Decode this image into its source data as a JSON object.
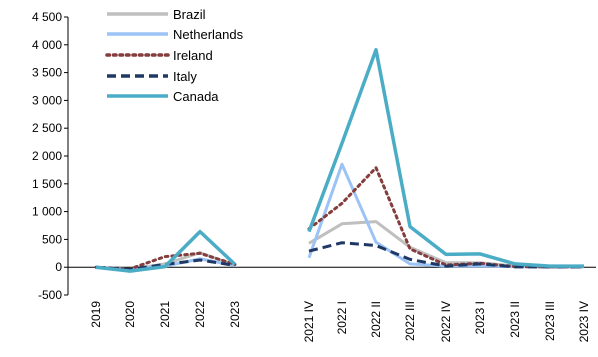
{
  "chart_data": {
    "type": "line",
    "title": "",
    "xlabel": "",
    "ylabel": "",
    "ylim": [
      -500,
      4500
    ],
    "yticks": [
      -500,
      0,
      500,
      1000,
      1500,
      2000,
      2500,
      3000,
      3500,
      4000,
      4500
    ],
    "ytick_labels": [
      "-500",
      "0",
      "500",
      "1 000",
      "1 500",
      "2 000",
      "2 500",
      "3 000",
      "3 500",
      "4 000",
      "4 500"
    ],
    "grid": false,
    "legend_position": "top-left",
    "panels": [
      {
        "categories": [
          "2019",
          "2020",
          "2021",
          "2022",
          "2023"
        ],
        "series": [
          {
            "name": "Brazil",
            "color": "#bfbfbf",
            "style": "solid",
            "values": [
              0,
              -40,
              60,
              260,
              40
            ]
          },
          {
            "name": "Netherlands",
            "color": "#9cc3f5",
            "style": "solid",
            "values": [
              0,
              -40,
              20,
              150,
              30
            ]
          },
          {
            "name": "Ireland",
            "color": "#843c3c",
            "style": "dotted",
            "values": [
              0,
              -30,
              190,
              250,
              50
            ]
          },
          {
            "name": "Italy",
            "color": "#1f3864",
            "style": "dashed",
            "values": [
              0,
              -40,
              50,
              130,
              30
            ]
          },
          {
            "name": "Canada",
            "color": "#4bacc6",
            "style": "solid",
            "values": [
              0,
              -70,
              10,
              640,
              50
            ]
          }
        ]
      },
      {
        "categories": [
          "2021 IV",
          "2022 I",
          "2022 II",
          "2022 III",
          "2022 IV",
          "2023 I",
          "2023 II",
          "2023 III",
          "2023 IV"
        ],
        "series": [
          {
            "name": "Brazil",
            "color": "#bfbfbf",
            "style": "solid",
            "values": [
              430,
              780,
              820,
              360,
              80,
              80,
              20,
              10,
              10
            ]
          },
          {
            "name": "Netherlands",
            "color": "#9cc3f5",
            "style": "solid",
            "values": [
              170,
              1850,
              450,
              60,
              20,
              20,
              10,
              5,
              5
            ]
          },
          {
            "name": "Ireland",
            "color": "#843c3c",
            "style": "dotted",
            "values": [
              690,
              1150,
              1790,
              330,
              40,
              70,
              10,
              5,
              5
            ]
          },
          {
            "name": "Italy",
            "color": "#1f3864",
            "style": "dashed",
            "values": [
              290,
              440,
              390,
              140,
              20,
              60,
              5,
              5,
              5
            ]
          },
          {
            "name": "Canada",
            "color": "#4bacc6",
            "style": "solid",
            "values": [
              640,
              2230,
              3910,
              730,
              230,
              240,
              60,
              20,
              20
            ]
          }
        ]
      }
    ]
  }
}
